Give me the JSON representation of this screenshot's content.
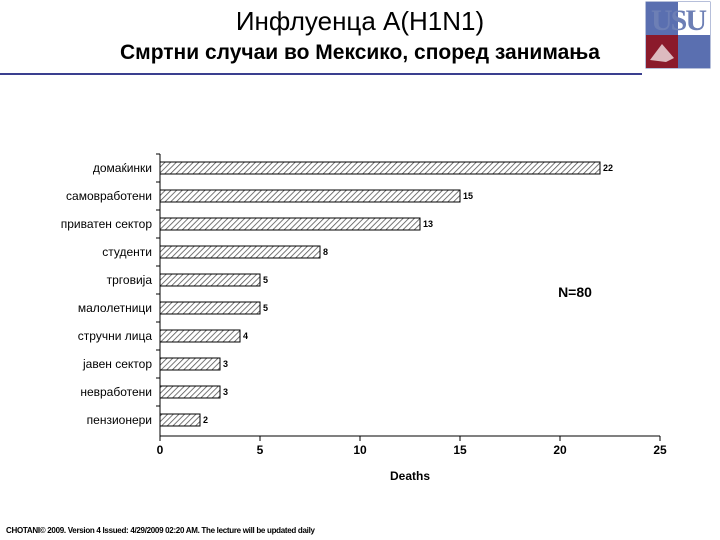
{
  "slide": {
    "title": "Инфлуенца A(H1N1)",
    "subtitle": "Смртни случаи во Мексико, според занимања",
    "logo_text": "USU",
    "footer": "CHOTANI© 2009. Version 4 Issued: 4/29/2009 02:20 AM. The lecture will be updated daily"
  },
  "chart_data": {
    "type": "bar",
    "orientation": "horizontal",
    "categories": [
      "домаќинки",
      "самовработени",
      "приватен сектор",
      "студенти",
      "трговија",
      "малолетници",
      "стручни лица",
      "јавен сектор",
      "невработени",
      "пензионери"
    ],
    "values": [
      22,
      15,
      13,
      8,
      5,
      5,
      4,
      3,
      3,
      2
    ],
    "xlabel": "Deaths",
    "ylabel": "",
    "xlim": [
      0,
      25
    ],
    "xticks": [
      0,
      5,
      10,
      15,
      20,
      25
    ],
    "annotation": "N=80",
    "grid": false,
    "bar_fill": "diagonal-hatch",
    "colors": {
      "bar_stroke": "#000000",
      "hatch": "#555555"
    }
  }
}
